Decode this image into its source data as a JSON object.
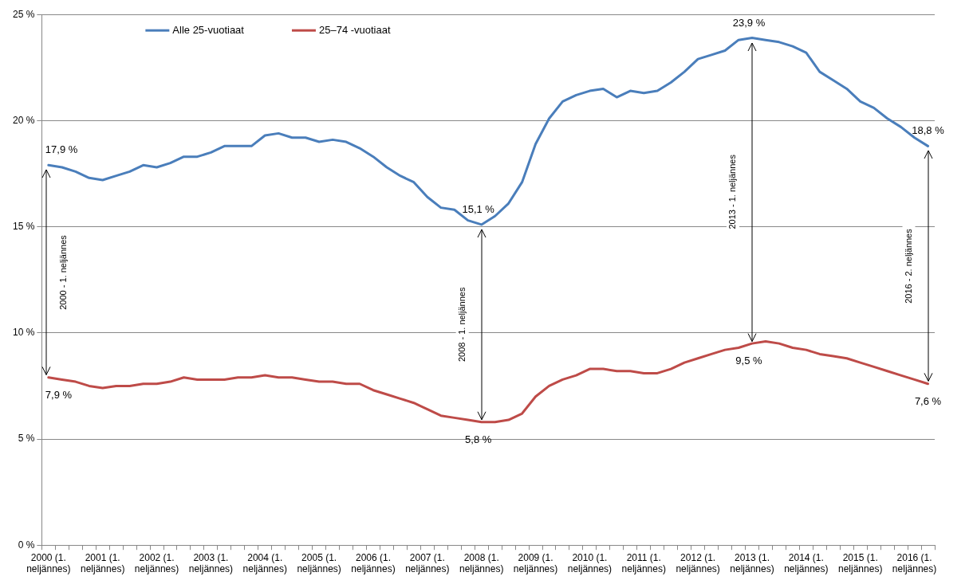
{
  "chart_data": {
    "type": "line",
    "categories": [
      "2000 (1. neljännes)",
      null,
      null,
      null,
      "2001 (1. neljännes)",
      null,
      null,
      null,
      "2002 (1. neljännes)",
      null,
      null,
      null,
      "2003 (1. neljännes)",
      null,
      null,
      null,
      "2004 (1. neljännes)",
      null,
      null,
      null,
      "2005 (1. neljännes)",
      null,
      null,
      null,
      "2006 (1. neljännes)",
      null,
      null,
      null,
      "2007 (1. neljännes)",
      null,
      null,
      null,
      "2008 (1. neljännes)",
      null,
      null,
      null,
      "2009 (1. neljännes)",
      null,
      null,
      null,
      "2010 (1. neljännes)",
      null,
      null,
      null,
      "2011 (1. neljännes)",
      null,
      null,
      null,
      "2012 (1. neljännes)",
      null,
      null,
      null,
      "2013 (1. neljännes)",
      null,
      null,
      null,
      "2014 (1. neljännes)",
      null,
      null,
      null,
      "2015 (1. neljännes)",
      null,
      null,
      null,
      "2016 (1. neljännes)",
      null
    ],
    "series": [
      {
        "name": "Alle 25-vuotiaat",
        "color": "#4a7ebb",
        "values": [
          17.9,
          17.8,
          17.6,
          17.3,
          17.2,
          17.4,
          17.6,
          17.9,
          17.8,
          18.0,
          18.3,
          18.3,
          18.5,
          18.8,
          18.8,
          18.8,
          19.3,
          19.4,
          19.2,
          19.2,
          19.0,
          19.1,
          19.0,
          18.7,
          18.3,
          17.8,
          17.4,
          17.1,
          16.4,
          15.9,
          15.8,
          15.3,
          15.1,
          15.5,
          16.1,
          17.1,
          18.9,
          20.1,
          20.9,
          21.2,
          21.4,
          21.5,
          21.1,
          21.4,
          21.3,
          21.4,
          21.8,
          22.3,
          22.9,
          23.1,
          23.3,
          23.8,
          23.9,
          23.8,
          23.7,
          23.5,
          23.2,
          22.3,
          21.9,
          21.5,
          20.9,
          20.6,
          20.1,
          19.7,
          19.2,
          18.8
        ],
        "value_labels": [
          "17,9 %",
          null,
          null,
          null,
          null,
          null,
          null,
          null,
          null,
          null,
          null,
          null,
          null,
          null,
          null,
          null,
          null,
          null,
          null,
          null,
          null,
          null,
          null,
          null,
          null,
          null,
          null,
          null,
          null,
          null,
          null,
          null,
          "15,1 %",
          null,
          null,
          null,
          null,
          null,
          null,
          null,
          null,
          null,
          null,
          null,
          null,
          null,
          null,
          null,
          null,
          null,
          null,
          null,
          "23,9 %",
          null,
          null,
          null,
          null,
          null,
          null,
          null,
          null,
          null,
          null,
          null,
          null,
          "18,8 %"
        ]
      },
      {
        "name": "25–74 -vuotiaat",
        "color": "#be4b48",
        "values": [
          7.9,
          7.8,
          7.7,
          7.5,
          7.4,
          7.5,
          7.5,
          7.6,
          7.6,
          7.7,
          7.9,
          7.8,
          7.8,
          7.8,
          7.9,
          7.9,
          8.0,
          7.9,
          7.9,
          7.8,
          7.7,
          7.7,
          7.6,
          7.6,
          7.3,
          7.1,
          6.9,
          6.7,
          6.4,
          6.1,
          6.0,
          5.9,
          5.8,
          5.8,
          5.9,
          6.2,
          7.0,
          7.5,
          7.8,
          8.0,
          8.3,
          8.3,
          8.2,
          8.2,
          8.1,
          8.1,
          8.3,
          8.6,
          8.8,
          9.0,
          9.2,
          9.3,
          9.5,
          9.6,
          9.5,
          9.3,
          9.2,
          9.0,
          8.9,
          8.8,
          8.6,
          8.4,
          8.2,
          8.0,
          7.8,
          7.6
        ],
        "value_labels": [
          "7,9 %",
          null,
          null,
          null,
          null,
          null,
          null,
          null,
          null,
          null,
          null,
          null,
          null,
          null,
          null,
          null,
          null,
          null,
          null,
          null,
          null,
          null,
          null,
          null,
          null,
          null,
          null,
          null,
          null,
          null,
          null,
          null,
          "5,8 %",
          null,
          null,
          null,
          null,
          null,
          null,
          null,
          null,
          null,
          null,
          null,
          null,
          null,
          null,
          null,
          null,
          null,
          null,
          null,
          "9,5 %",
          null,
          null,
          null,
          null,
          null,
          null,
          null,
          null,
          null,
          null,
          null,
          null,
          "7,6 %"
        ]
      }
    ],
    "ylim": [
      0,
      25
    ],
    "yticks": [
      {
        "value": 0,
        "label": "0 %"
      },
      {
        "value": 5,
        "label": "5 %"
      },
      {
        "value": 10,
        "label": "10 %"
      },
      {
        "value": 15,
        "label": "15 %"
      },
      {
        "value": 20,
        "label": "20 %"
      },
      {
        "value": 25,
        "label": "25 %"
      }
    ],
    "annotations": [
      "2000 - 1. neljännes",
      "2008 - 1. neljännes",
      "2013 - 1. neljännes",
      "2016 - 2. neljännes"
    ],
    "grid": "y",
    "legend": "top left",
    "marker": "none",
    "line_style": "solid"
  }
}
